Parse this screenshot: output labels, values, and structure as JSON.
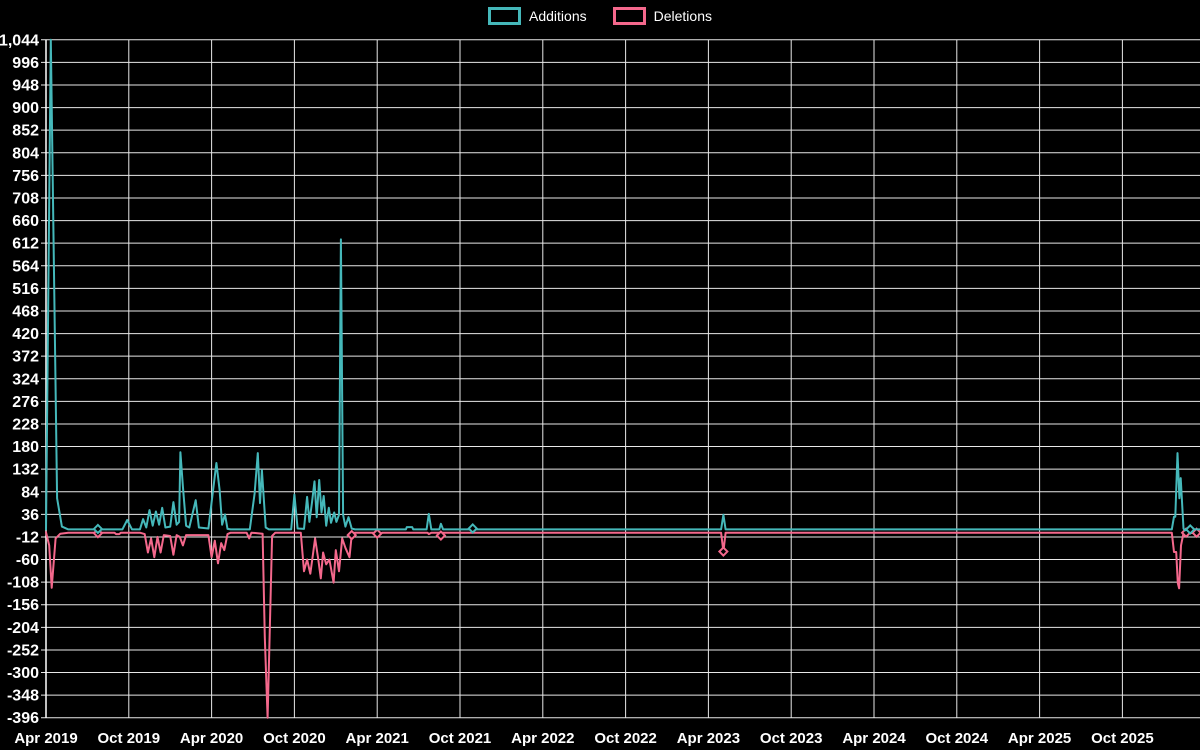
{
  "legend": {
    "items": [
      {
        "label": "Additions",
        "color": "#45b8ba"
      },
      {
        "label": "Deletions",
        "color": "#f4688c"
      }
    ]
  },
  "chart_data": {
    "type": "line",
    "title": "",
    "background": "#000000",
    "grid_color": "#e8e8e8",
    "axis_color": "#ffffff",
    "text_color": "#ffffff",
    "legend_position": "top-center",
    "grid": true,
    "x_axis_unit": "weeks since Apr 2019 (each x tick = 6 months)",
    "x_tick_labels": [
      "Apr 2019",
      "Oct 2019",
      "Apr 2020",
      "Oct 2020",
      "Apr 2021",
      "Oct 2021",
      "Apr 2022",
      "Oct 2022",
      "Apr 2023",
      "Oct 2023",
      "Apr 2024",
      "Oct 2024",
      "Apr 2025",
      "Oct 2025"
    ],
    "weeks_per_x_tick": 26,
    "x_range_weeks": [
      0,
      362.5
    ],
    "ylim": [
      -396,
      1044
    ],
    "y_tick_step": 48,
    "y_ticks": [
      1044,
      996,
      948,
      900,
      852,
      804,
      756,
      708,
      660,
      612,
      564,
      516,
      468,
      420,
      372,
      324,
      276,
      228,
      180,
      132,
      84,
      36,
      -12,
      -60,
      -108,
      -156,
      -204,
      -252,
      -300,
      -348,
      -396
    ],
    "series": [
      {
        "name": "Additions",
        "color": "#45b8ba",
        "points": [
          [
            0,
            4
          ],
          [
            1.5,
            1044
          ],
          [
            3.5,
            70
          ],
          [
            5,
            10
          ],
          [
            7,
            4
          ],
          [
            24,
            4
          ],
          [
            25.5,
            24
          ],
          [
            27,
            4
          ],
          [
            29.5,
            4
          ],
          [
            30.5,
            26
          ],
          [
            31.5,
            8
          ],
          [
            32.5,
            45
          ],
          [
            33.5,
            12
          ],
          [
            34.5,
            42
          ],
          [
            35.5,
            14
          ],
          [
            36.5,
            50
          ],
          [
            37.5,
            8
          ],
          [
            39,
            10
          ],
          [
            40,
            62
          ],
          [
            41,
            14
          ],
          [
            41.8,
            20
          ],
          [
            42.2,
            168
          ],
          [
            43,
            95
          ],
          [
            44,
            12
          ],
          [
            45,
            8
          ],
          [
            47,
            66
          ],
          [
            48,
            8
          ],
          [
            51,
            6
          ],
          [
            53.5,
            145
          ],
          [
            54.5,
            88
          ],
          [
            55.3,
            14
          ],
          [
            56.2,
            36
          ],
          [
            57,
            5
          ],
          [
            58,
            4
          ],
          [
            64,
            4
          ],
          [
            65.5,
            80
          ],
          [
            66.5,
            166
          ],
          [
            67.2,
            60
          ],
          [
            67.8,
            130
          ],
          [
            69,
            8
          ],
          [
            70,
            4
          ],
          [
            77,
            4
          ],
          [
            78,
            78
          ],
          [
            79,
            6
          ],
          [
            81,
            5
          ],
          [
            82,
            73
          ],
          [
            82.7,
            20
          ],
          [
            83.5,
            60
          ],
          [
            84.3,
            106
          ],
          [
            85,
            30
          ],
          [
            85.8,
            109
          ],
          [
            86.5,
            40
          ],
          [
            87.2,
            75
          ],
          [
            88,
            12
          ],
          [
            88.8,
            50
          ],
          [
            89.5,
            18
          ],
          [
            90.5,
            40
          ],
          [
            91.2,
            20
          ],
          [
            92,
            35
          ],
          [
            92.6,
            620
          ],
          [
            93.3,
            35
          ],
          [
            94,
            10
          ],
          [
            95,
            30
          ],
          [
            96,
            6
          ],
          [
            97,
            4
          ],
          [
            113,
            4
          ],
          [
            113.3,
            9
          ],
          [
            115,
            9
          ],
          [
            115.3,
            4
          ],
          [
            119.5,
            4
          ],
          [
            120.2,
            37
          ],
          [
            121,
            4
          ],
          [
            123.5,
            4
          ],
          [
            124,
            16
          ],
          [
            124.7,
            4
          ],
          [
            133.3,
            4
          ],
          [
            133.8,
            7
          ],
          [
            134.3,
            4
          ],
          [
            212,
            4
          ],
          [
            212.7,
            35
          ],
          [
            213.4,
            4
          ],
          [
            353.5,
            4
          ],
          [
            354.2,
            31
          ],
          [
            354.6,
            31
          ],
          [
            355.3,
            166
          ],
          [
            355.9,
            70
          ],
          [
            356.3,
            113
          ],
          [
            357.2,
            6
          ],
          [
            357.6,
            2
          ],
          [
            358.5,
            4
          ],
          [
            362.5,
            4
          ]
        ],
        "markers": [
          [
            16.3,
            5
          ],
          [
            134,
            6
          ],
          [
            359.3,
            4
          ]
        ]
      },
      {
        "name": "Deletions",
        "color": "#f4688c",
        "points": [
          [
            0,
            -2
          ],
          [
            1,
            -30
          ],
          [
            1.8,
            -120
          ],
          [
            3,
            -15
          ],
          [
            4.5,
            -5
          ],
          [
            7,
            -3
          ],
          [
            21.5,
            -3
          ],
          [
            22,
            -6
          ],
          [
            23,
            -6
          ],
          [
            23.5,
            -3
          ],
          [
            29.5,
            -3
          ],
          [
            31,
            -6
          ],
          [
            32,
            -45
          ],
          [
            33,
            -15
          ],
          [
            34,
            -55
          ],
          [
            35,
            -12
          ],
          [
            36,
            -45
          ],
          [
            37,
            -8
          ],
          [
            39,
            -10
          ],
          [
            40,
            -50
          ],
          [
            41,
            -8
          ],
          [
            42,
            -12
          ],
          [
            43,
            -30
          ],
          [
            44,
            -8
          ],
          [
            51,
            -8
          ],
          [
            52,
            -55
          ],
          [
            53,
            -20
          ],
          [
            54,
            -68
          ],
          [
            55,
            -25
          ],
          [
            56,
            -40
          ],
          [
            57,
            -6
          ],
          [
            58,
            -3
          ],
          [
            63,
            -3
          ],
          [
            63.8,
            -15
          ],
          [
            64.5,
            -3
          ],
          [
            68,
            -5
          ],
          [
            68.7,
            -225
          ],
          [
            69.6,
            -396
          ],
          [
            70.2,
            -225
          ],
          [
            71,
            -10
          ],
          [
            72,
            -3
          ],
          [
            80,
            -3
          ],
          [
            81,
            -85
          ],
          [
            82,
            -60
          ],
          [
            83,
            -90
          ],
          [
            83.8,
            -50
          ],
          [
            84.5,
            -15
          ],
          [
            85.5,
            -60
          ],
          [
            86.3,
            -100
          ],
          [
            87,
            -45
          ],
          [
            88,
            -70
          ],
          [
            89,
            -60
          ],
          [
            90.3,
            -109
          ],
          [
            91,
            -40
          ],
          [
            92,
            -85
          ],
          [
            93,
            -15
          ],
          [
            94,
            -35
          ],
          [
            95.3,
            -55
          ],
          [
            96,
            -8
          ],
          [
            97,
            -3
          ],
          [
            103,
            -3
          ],
          [
            103.5,
            -6
          ],
          [
            105,
            -6
          ],
          [
            105.5,
            -3
          ],
          [
            119.8,
            -3
          ],
          [
            120.2,
            -6
          ],
          [
            121,
            -3
          ],
          [
            123.7,
            -3
          ],
          [
            124,
            -9
          ],
          [
            124.5,
            -3
          ],
          [
            212,
            -3
          ],
          [
            212.7,
            -43
          ],
          [
            213.4,
            -3
          ],
          [
            353.5,
            -3
          ],
          [
            354.2,
            -44
          ],
          [
            354.9,
            -44
          ],
          [
            355.4,
            -110
          ],
          [
            355.8,
            -121
          ],
          [
            356.4,
            -30
          ],
          [
            357.2,
            -4
          ],
          [
            362.5,
            -3
          ]
        ],
        "markers": [
          [
            16.3,
            -4
          ],
          [
            96,
            -8
          ],
          [
            104,
            -5
          ],
          [
            124,
            -9
          ],
          [
            212.7,
            -43
          ],
          [
            358,
            -3
          ],
          [
            361.3,
            -3
          ]
        ]
      }
    ]
  }
}
